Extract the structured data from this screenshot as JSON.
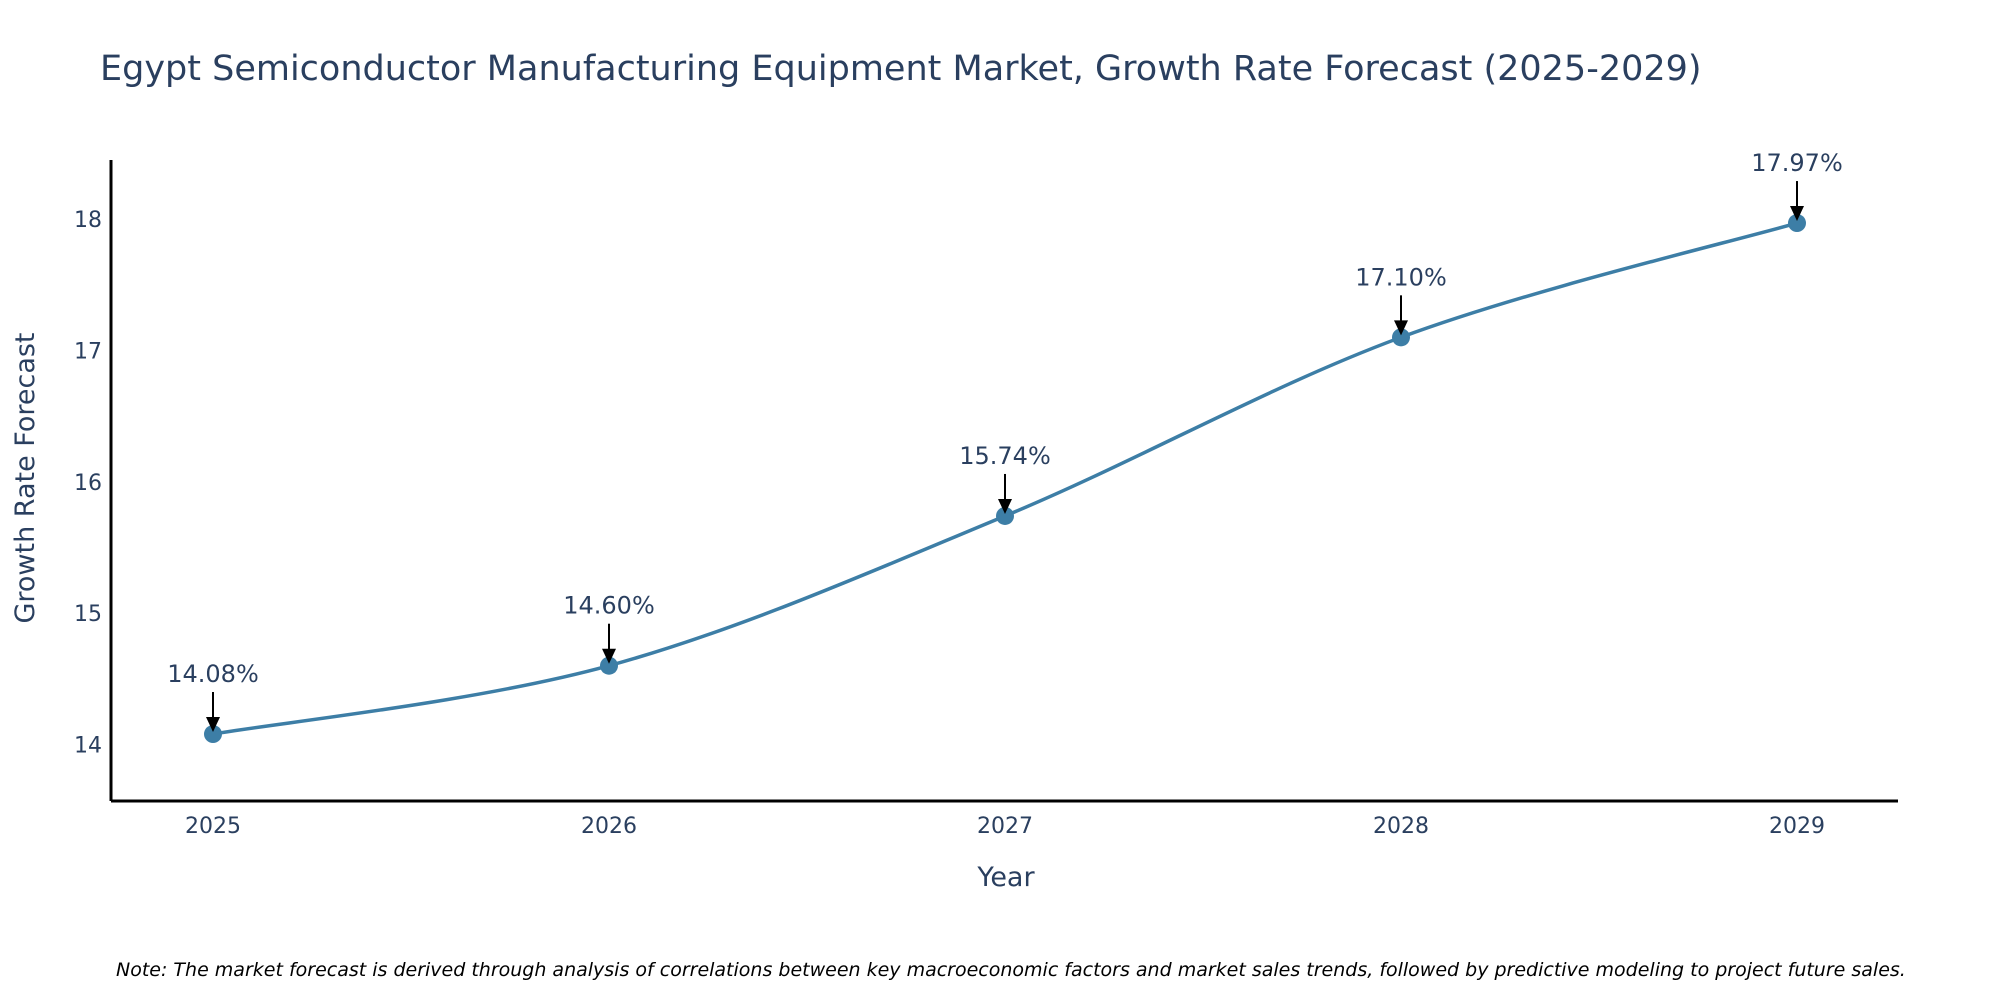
{
  "chart_data": {
    "type": "line",
    "title": "Egypt Semiconductor Manufacturing Equipment Market, Growth Rate Forecast (2025-2029)",
    "xlabel": "Year",
    "ylabel": "Growth Rate Forecast",
    "categories": [
      "2025",
      "2026",
      "2027",
      "2028",
      "2029"
    ],
    "series": [
      {
        "name": "Growth Rate Forecast",
        "values": [
          14.08,
          14.6,
          15.74,
          17.1,
          17.97
        ],
        "labels": [
          "14.08%",
          "14.60%",
          "15.74%",
          "17.10%",
          "17.97%"
        ],
        "color": "#3d7ea6"
      }
    ],
    "ylim": [
      13.57,
      18.45
    ],
    "yticks": [
      14,
      15,
      16,
      17,
      18
    ],
    "grid": false,
    "axis_color": "#000000",
    "annotation_arrow_color": "#000000",
    "text_color": "#2a3f5f"
  },
  "note": "Note: The market forecast is derived through analysis of correlations between key macroeconomic factors and market sales trends, followed by predictive modeling to project future sales."
}
